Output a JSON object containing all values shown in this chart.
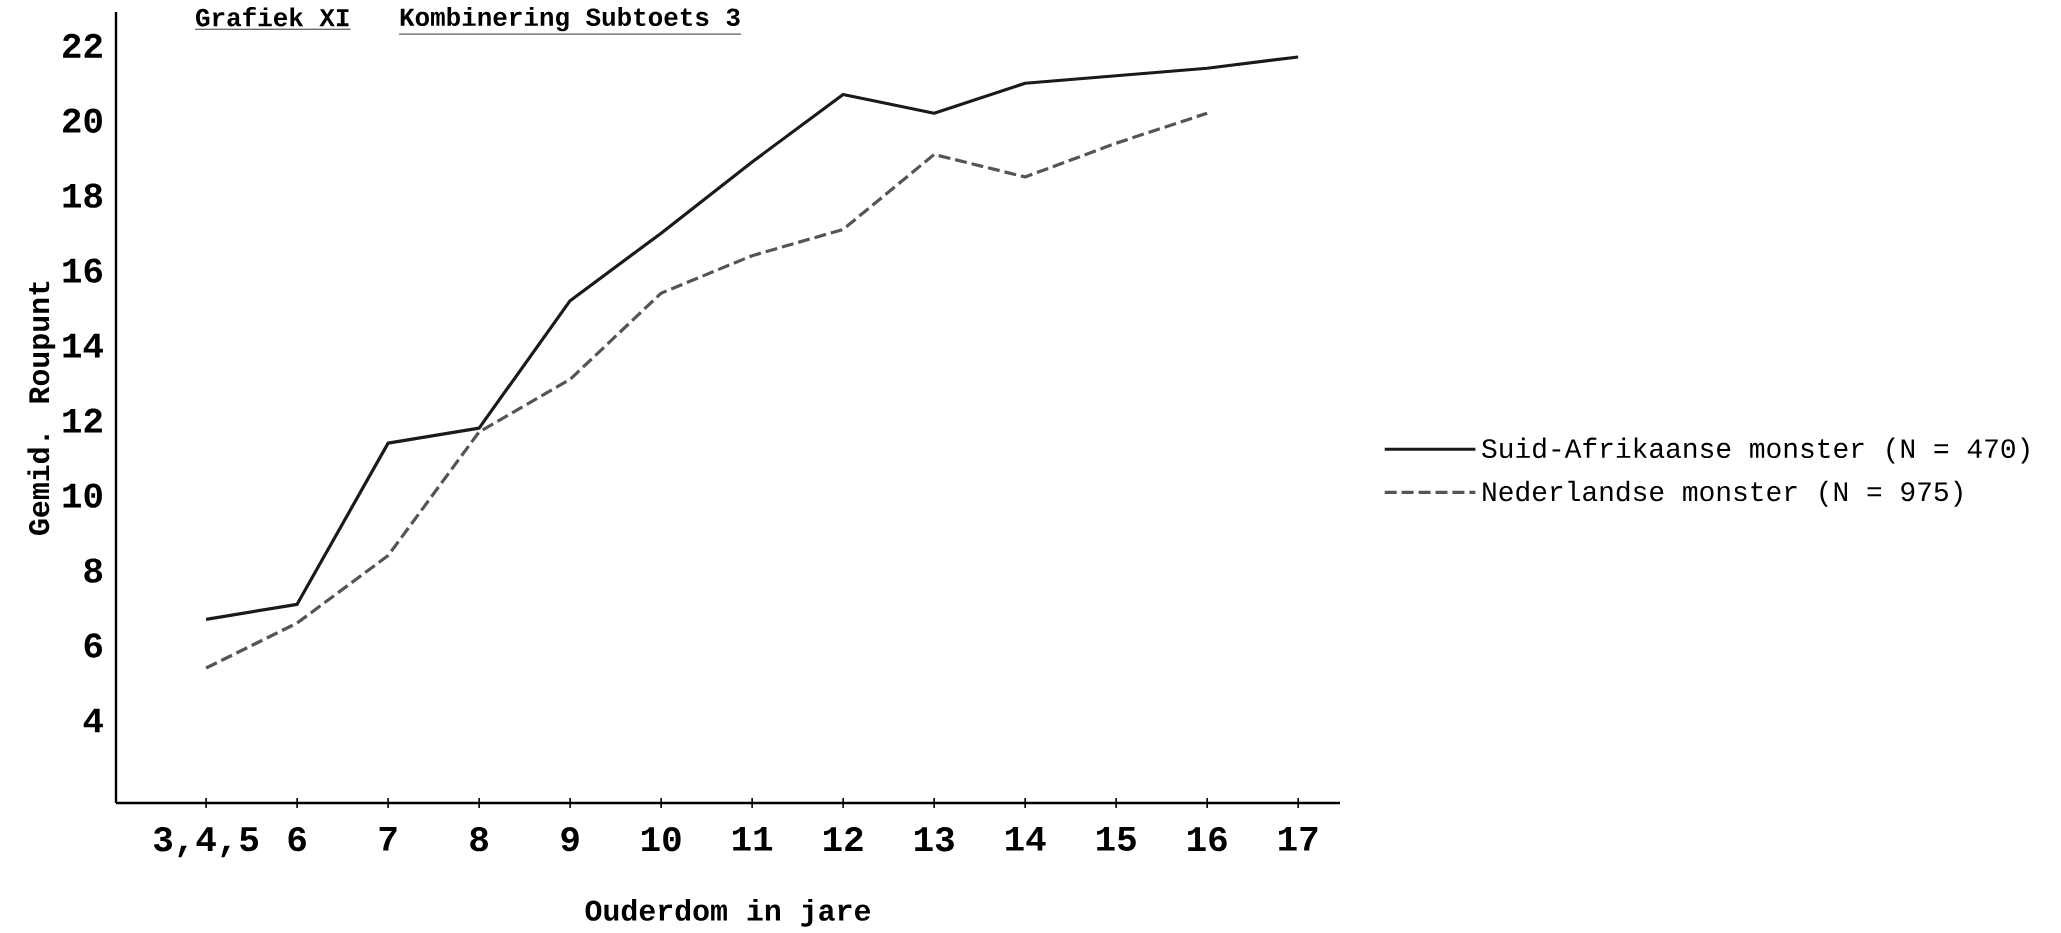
{
  "chart_data": {
    "type": "line",
    "title": "Grafiek XI",
    "subtitle": "Kombinering  Subtoets 3",
    "xlabel": "Ouderdom in jare",
    "ylabel": "Gemid.  Roupunt",
    "categories": [
      "3,4,5",
      "6",
      "7",
      "8",
      "9",
      "10",
      "11",
      "12",
      "13",
      "14",
      "15",
      "16",
      "17"
    ],
    "series": [
      {
        "name": "Suid-Afrikaanse monster (N = 470)",
        "color": "#1a1a1a",
        "line_style": "solid",
        "values": [
          6.7,
          7.1,
          11.4,
          11.8,
          15.2,
          17.0,
          18.9,
          20.7,
          20.2,
          21.0,
          21.2,
          21.4,
          21.7
        ]
      },
      {
        "name": "Nederlandse monster (N = 975)",
        "color": "#555555",
        "line_style": "dashed",
        "values": [
          5.4,
          6.6,
          8.4,
          11.7,
          13.1,
          15.4,
          16.4,
          17.1,
          19.1,
          18.5,
          19.4,
          20.2,
          null
        ]
      }
    ],
    "ylim": [
      1.8,
      22.9
    ],
    "yticks": [
      4,
      6,
      8,
      10,
      12,
      14,
      16,
      18,
      20,
      22
    ],
    "grid": false,
    "legend": "right",
    "marker": "none"
  }
}
